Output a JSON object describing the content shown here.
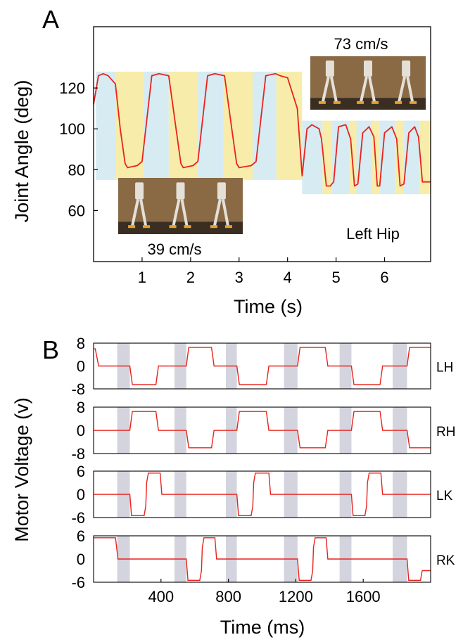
{
  "figure": {
    "panel_a_label": "A",
    "panel_b_label": "B"
  },
  "colors": {
    "trace": "#e8231e",
    "band_blue": "#d6ebf2",
    "band_yellow": "#f7ecaa",
    "shade_gray": "#d4d4de",
    "photo_bg": "#8a6a45",
    "photo_floor": "#3a2e22",
    "robot": "#e4e0d8",
    "robot_feet": "#e8a22c"
  },
  "chart_data": [
    {
      "type": "line",
      "panel": "A",
      "xlabel": "Time (s)",
      "ylabel": "Joint Angle (deg)",
      "xlim": [
        0,
        6.95
      ],
      "ylim": [
        35,
        150
      ],
      "xticks": [
        1,
        2,
        3,
        4,
        5,
        6
      ],
      "yticks": [
        60,
        80,
        100,
        120
      ],
      "annotation": "Left Hip",
      "photo_labels": {
        "slow": "39 cm/s",
        "fast": "73 cm/s"
      },
      "phase_bands": [
        {
          "x0": 0.05,
          "x1": 0.45,
          "y0": 75,
          "y1": 128,
          "color": "blue"
        },
        {
          "x0": 0.45,
          "x1": 1.02,
          "y0": 75,
          "y1": 128,
          "color": "yellow"
        },
        {
          "x0": 1.02,
          "x1": 1.55,
          "y0": 75,
          "y1": 128,
          "color": "blue"
        },
        {
          "x0": 1.55,
          "x1": 2.15,
          "y0": 75,
          "y1": 128,
          "color": "yellow"
        },
        {
          "x0": 2.15,
          "x1": 2.67,
          "y0": 75,
          "y1": 128,
          "color": "blue"
        },
        {
          "x0": 2.67,
          "x1": 3.28,
          "y0": 75,
          "y1": 128,
          "color": "yellow"
        },
        {
          "x0": 3.28,
          "x1": 3.77,
          "y0": 75,
          "y1": 128,
          "color": "blue"
        },
        {
          "x0": 3.77,
          "x1": 4.3,
          "y0": 75,
          "y1": 128,
          "color": "yellow"
        },
        {
          "x0": 4.3,
          "x1": 4.72,
          "y0": 68,
          "y1": 104,
          "color": "blue"
        },
        {
          "x0": 4.72,
          "x1": 4.92,
          "y0": 68,
          "y1": 104,
          "color": "yellow"
        },
        {
          "x0": 4.92,
          "x1": 5.28,
          "y0": 68,
          "y1": 104,
          "color": "blue"
        },
        {
          "x0": 5.28,
          "x1": 5.42,
          "y0": 68,
          "y1": 104,
          "color": "yellow"
        },
        {
          "x0": 5.42,
          "x1": 5.74,
          "y0": 68,
          "y1": 104,
          "color": "blue"
        },
        {
          "x0": 5.74,
          "x1": 5.9,
          "y0": 68,
          "y1": 104,
          "color": "yellow"
        },
        {
          "x0": 5.9,
          "x1": 6.22,
          "y0": 68,
          "y1": 104,
          "color": "blue"
        },
        {
          "x0": 6.22,
          "x1": 6.4,
          "y0": 68,
          "y1": 104,
          "color": "yellow"
        },
        {
          "x0": 6.4,
          "x1": 6.72,
          "y0": 68,
          "y1": 104,
          "color": "blue"
        },
        {
          "x0": 6.72,
          "x1": 6.95,
          "y0": 68,
          "y1": 104,
          "color": "yellow"
        }
      ],
      "series": [
        {
          "x": [
            0,
            0.1,
            0.2,
            0.3,
            0.45,
            0.55,
            0.65,
            0.7,
            0.9,
            1.0,
            1.1,
            1.2,
            1.35,
            1.55,
            1.7,
            1.8,
            1.85,
            2.05,
            2.15,
            2.25,
            2.35,
            2.5,
            2.7,
            2.85,
            2.95,
            3.0,
            3.25,
            3.35,
            3.45,
            3.55,
            3.75,
            3.85,
            4.0,
            4.2,
            4.3,
            4.4,
            4.5,
            4.65,
            4.7,
            4.8,
            4.88,
            4.95,
            5.05,
            5.2,
            5.3,
            5.38,
            5.45,
            5.55,
            5.68,
            5.78,
            5.85,
            5.9,
            6.0,
            6.15,
            6.25,
            6.32,
            6.4,
            6.5,
            6.62,
            6.7,
            6.78,
            6.85,
            6.95
          ],
          "y": [
            112,
            126,
            127,
            126,
            122,
            100,
            83,
            81,
            82,
            84,
            105,
            126,
            127,
            126,
            100,
            83,
            81,
            82,
            84,
            105,
            126,
            127,
            126,
            100,
            83,
            81,
            82,
            84,
            105,
            126,
            127,
            126,
            125,
            110,
            77,
            100,
            102,
            100,
            95,
            72,
            72,
            74,
            101,
            102,
            95,
            72,
            73,
            98,
            101,
            96,
            72,
            72,
            98,
            101,
            95,
            72,
            73,
            98,
            101,
            96,
            74,
            74,
            74
          ]
        }
      ]
    },
    {
      "type": "line",
      "panel": "B",
      "xlabel": "Time (ms)",
      "ylabel": "Motor Voltage (v)",
      "xlim": [
        0,
        2000
      ],
      "xticks": [
        400,
        800,
        1200,
        1600
      ],
      "shaded_intervals": [
        [
          140,
          215
        ],
        [
          480,
          550
        ],
        [
          785,
          850
        ],
        [
          1130,
          1210
        ],
        [
          1460,
          1530
        ],
        [
          1775,
          1860
        ]
      ],
      "subplots": [
        {
          "name": "LH",
          "ylim": [
            -8,
            8
          ],
          "yticks": [
            {
              "v": 8,
              "label": "8"
            },
            {
              "v": 0,
              "label": "0"
            },
            {
              "v": -8,
              "label": "-8"
            }
          ],
          "x": [
            0,
            10,
            30,
            215,
            230,
            370,
            385,
            550,
            565,
            700,
            715,
            850,
            865,
            1025,
            1040,
            1210,
            1225,
            1375,
            1390,
            1530,
            1545,
            1700,
            1715,
            1860,
            1875,
            2000
          ],
          "y": [
            6,
            6,
            0,
            0,
            -6.5,
            -6.5,
            0,
            0,
            6.5,
            6.5,
            0,
            0,
            -6.5,
            -6.5,
            0,
            0,
            6.5,
            6.5,
            0,
            0,
            -6.5,
            -6.5,
            0,
            0,
            6.5,
            6.5
          ]
        },
        {
          "name": "RH",
          "ylim": [
            -8,
            8
          ],
          "yticks": [
            {
              "v": 8,
              "label": "8"
            },
            {
              "v": 0,
              "label": "0"
            },
            {
              "v": -8,
              "label": "-8"
            }
          ],
          "x": [
            0,
            215,
            230,
            370,
            385,
            550,
            565,
            700,
            715,
            850,
            865,
            1025,
            1040,
            1210,
            1225,
            1375,
            1390,
            1530,
            1545,
            1700,
            1715,
            1860,
            1875,
            2000
          ],
          "y": [
            0,
            0,
            6.5,
            6.5,
            0,
            0,
            -6,
            -6,
            0,
            0,
            6.5,
            6.5,
            0,
            0,
            -6,
            -6,
            0,
            0,
            6.5,
            6.5,
            0,
            0,
            -6,
            -6
          ]
        },
        {
          "name": "LK",
          "ylim": [
            -6,
            6
          ],
          "yticks": [
            {
              "v": 6,
              "label": "6"
            },
            {
              "v": 0,
              "label": "0"
            },
            {
              "v": -6,
              "label": "-6"
            }
          ],
          "x": [
            0,
            215,
            225,
            300,
            310,
            315,
            325,
            395,
            405,
            550,
            850,
            860,
            935,
            945,
            950,
            960,
            1040,
            1050,
            1210,
            1530,
            1540,
            1610,
            1620,
            1625,
            1635,
            1705,
            1715,
            2000
          ],
          "y": [
            0,
            0,
            -5.5,
            -5.5,
            -3,
            3,
            5.5,
            5.5,
            0,
            0,
            0,
            -5.5,
            -5.5,
            -3,
            3,
            5.5,
            5.5,
            0,
            0,
            0,
            -5.5,
            -5.5,
            -3,
            3,
            5.5,
            5.5,
            0,
            0
          ]
        },
        {
          "name": "RK",
          "ylim": [
            -6,
            6
          ],
          "yticks": [
            {
              "v": 6,
              "label": "6"
            },
            {
              "v": 0,
              "label": "0"
            },
            {
              "v": -6,
              "label": "-6"
            }
          ],
          "x": [
            0,
            130,
            145,
            550,
            560,
            630,
            640,
            645,
            655,
            720,
            730,
            1210,
            1220,
            1290,
            1300,
            1305,
            1315,
            1380,
            1390,
            1860,
            1870,
            1940,
            1950,
            2000
          ],
          "y": [
            5.5,
            5.5,
            0,
            0,
            -5.5,
            -5.5,
            -3,
            3,
            5.5,
            5.5,
            0,
            0,
            -5.5,
            -5.5,
            -3,
            3,
            5.5,
            5.5,
            0,
            0,
            -5.5,
            -5.5,
            -3,
            -3
          ]
        }
      ]
    }
  ]
}
